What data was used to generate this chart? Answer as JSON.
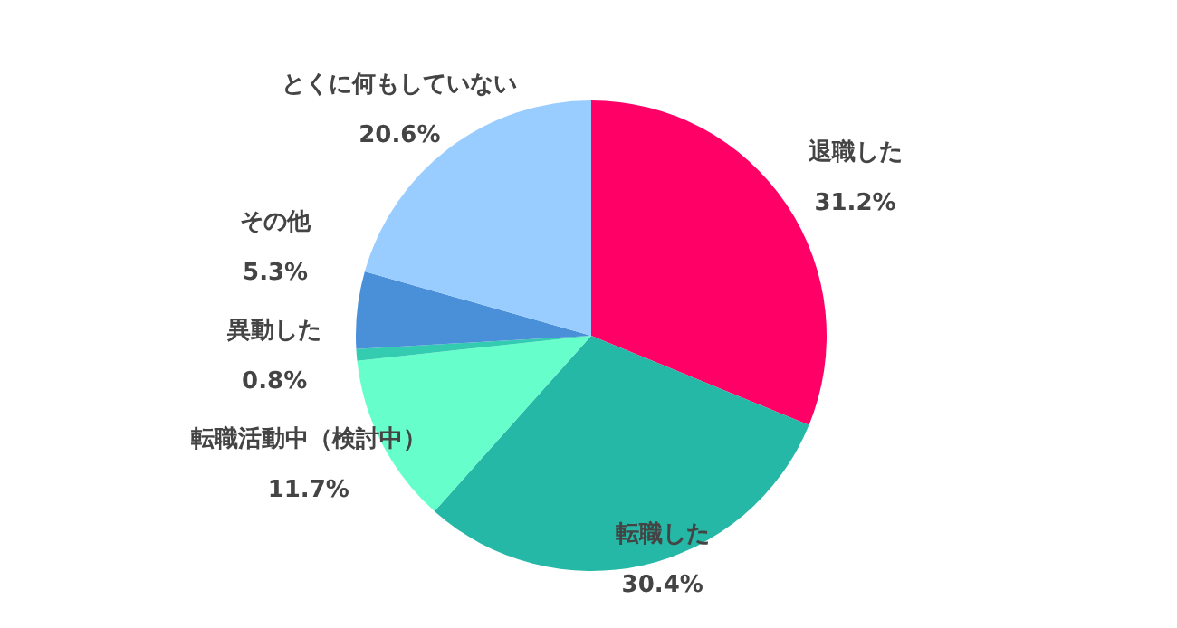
{
  "chart_data": {
    "type": "pie",
    "categories": [
      "退職した",
      "転職した",
      "転職活動中（検討中）",
      "異動した",
      "その他",
      "とくに何もしていない"
    ],
    "values": [
      31.2,
      30.4,
      11.7,
      0.8,
      5.3,
      20.6
    ],
    "colors": [
      "#ff0066",
      "#26b8a6",
      "#66ffcc",
      "#33ccb0",
      "#4a90d9",
      "#99ccff"
    ],
    "value_labels": [
      "31.2%",
      "30.4%",
      "11.7%",
      "0.8%",
      "5.3%",
      "20.6%"
    ]
  }
}
